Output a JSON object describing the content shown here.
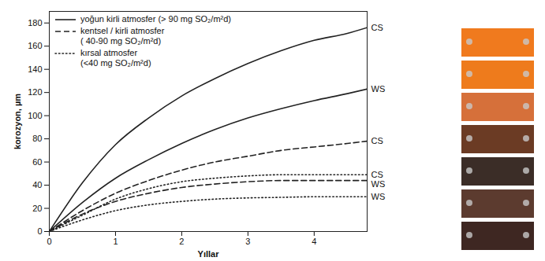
{
  "chart_data": {
    "type": "line",
    "x_label": "Yıllar",
    "y_label": "korozyon, µm",
    "x": [
      0,
      0.5,
      1,
      1.5,
      2,
      2.5,
      3,
      3.5,
      4,
      4.5,
      4.8
    ],
    "xlim": [
      0,
      4.8
    ],
    "xticks": [
      0,
      1,
      2,
      3,
      4
    ],
    "ylim": [
      0,
      190
    ],
    "yticks": [
      0,
      20,
      40,
      60,
      80,
      100,
      120,
      140,
      160,
      180
    ],
    "grid": false,
    "legend": "top-left",
    "series": [
      {
        "name": "CS",
        "group": "yoğun kirli atmosfer (> 90 mg SO₂/m²d)",
        "line_style": "solid",
        "color": "#222222",
        "values": [
          0,
          42,
          75,
          98,
          117,
          132,
          145,
          156,
          165,
          171,
          176
        ]
      },
      {
        "name": "WS",
        "group": "yoğun kirli atmosfer (> 90 mg SO₂/m²d)",
        "line_style": "solid",
        "color": "#222222",
        "values": [
          0,
          25,
          46,
          62,
          76,
          88,
          98,
          106,
          113,
          119,
          123
        ]
      },
      {
        "name": "CS",
        "group": "kentsel / kirli atmosfer\n( 40-90 mg SO₂/m²d)",
        "line_style": "dashed",
        "color": "#222222",
        "values": [
          0,
          18,
          33,
          44,
          53,
          60,
          65,
          70,
          73,
          76,
          78
        ]
      },
      {
        "name": "CS",
        "group": "kırsal atmosfer\n(<40 mg SO₂/m²d)",
        "line_style": "dotted",
        "color": "#222222",
        "values": [
          0,
          14,
          28,
          37,
          43,
          46,
          48,
          49,
          49,
          49,
          49
        ]
      },
      {
        "name": "WS",
        "group": "kentsel / kirli atmosfer\n( 40-90 mg SO₂/m²d)",
        "line_style": "dashed",
        "color": "#222222",
        "values": [
          0,
          15,
          26,
          33,
          38,
          41,
          43,
          44,
          44,
          44,
          44
        ]
      },
      {
        "name": "WS",
        "group": "kırsal atmosfer\n(<40 mg SO₂/m²d)",
        "line_style": "dotted",
        "color": "#222222",
        "values": [
          0,
          10,
          18,
          23,
          26,
          28,
          29,
          29.5,
          30,
          30,
          30
        ]
      }
    ]
  }
}
